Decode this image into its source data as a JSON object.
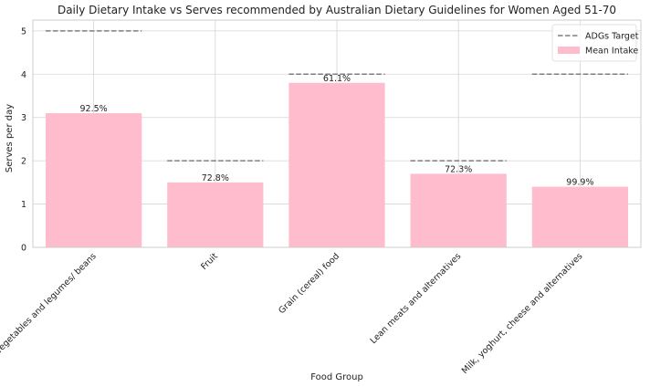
{
  "colors": {
    "bar": "#ffbccc",
    "target_line": "#7f7f7f",
    "grid": "#d6d6d6",
    "axes_edge": "#cccccc",
    "background": "#ffffff"
  },
  "chart_data": {
    "type": "bar",
    "title": "Daily Dietary Intake vs Serves recommended by Australian Dietary Guidelines for Women Aged 51-70",
    "xlabel": "Food Group",
    "ylabel": "Serves per day",
    "ylim": [
      0,
      5.25
    ],
    "yticks": [
      0,
      1,
      2,
      3,
      4,
      5
    ],
    "grid": true,
    "legend_position": "top-right",
    "categories": [
      "Vegetables and legumes/ beans",
      "Fruit",
      "Grain (cereal) food",
      "Lean meats and alternatives",
      "Milk, yoghurt, cheese and alternatives"
    ],
    "series": [
      {
        "name": "Mean Intake",
        "kind": "bar",
        "values": [
          3.1,
          1.5,
          3.8,
          1.7,
          1.4
        ]
      },
      {
        "name": "ADGs Target",
        "kind": "dashed-line",
        "values": [
          5,
          2,
          4,
          2,
          4
        ]
      }
    ],
    "data_labels": [
      "92.5%",
      "72.8%",
      "61.1%",
      "72.3%",
      "99.9%"
    ]
  }
}
